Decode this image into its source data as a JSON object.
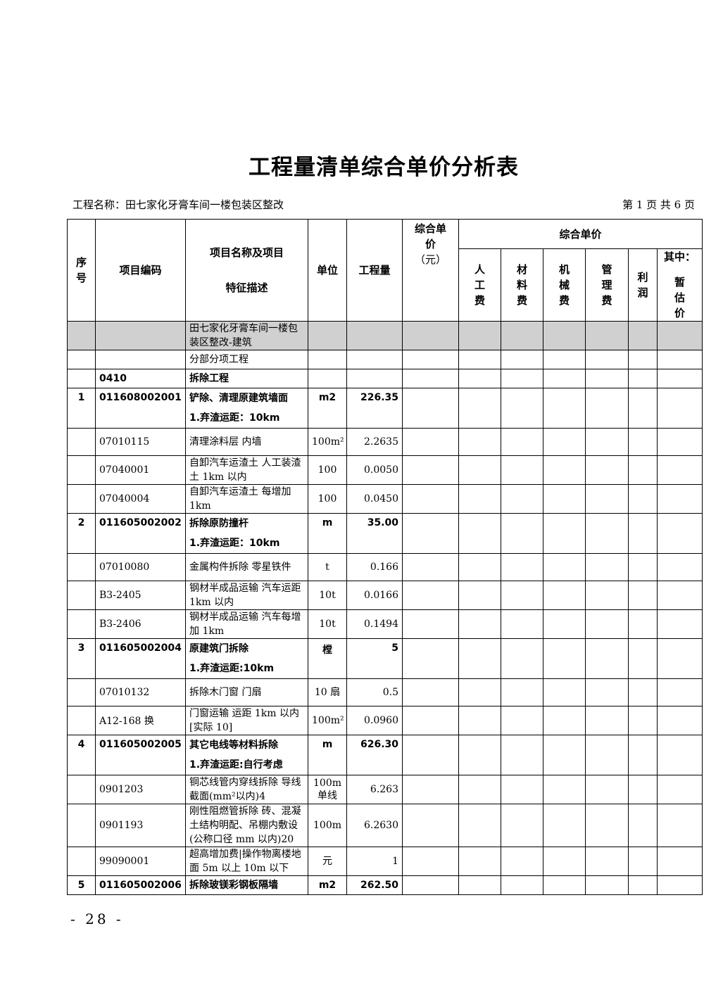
{
  "header": {
    "title": "工程量清单综合单价分析表",
    "project": "工程名称：田七家化牙膏车间一楼包装区整改",
    "page": "第 1 页  共 6 页"
  },
  "table": {
    "columns": {
      "no": "序号",
      "code": "项目编码",
      "name": [
        "项目名称及项目",
        "特征描述"
      ],
      "unit": "单位",
      "qty": "工程量",
      "price": [
        "综合单价",
        "（元）"
      ],
      "group": "综合单价",
      "sub": [
        [
          "人工费"
        ],
        [
          "材料费"
        ],
        [
          "机械费"
        ],
        [
          "管理费"
        ],
        [
          "利润"
        ],
        [
          "其中：",
          "暂估价"
        ]
      ]
    },
    "section": "田七家化牙膏车间一楼包装区整改-建筑",
    "rows": [
      {
        "kind": "group",
        "name": [
          "分部分项工程"
        ]
      },
      {
        "kind": "group-bold",
        "code": "0410",
        "name": [
          "拆除工程"
        ]
      },
      {
        "kind": "item",
        "no": "1",
        "code": "011608002001",
        "name": [
          "铲除、清理原建筑墙面",
          "1.弃渣运距：10km"
        ],
        "unit": "m2",
        "qty": "226.35"
      },
      {
        "kind": "sub",
        "code": "07010115",
        "name": [
          "清理涂料层 内墙"
        ],
        "unit": "100m²",
        "qty": "2.2635"
      },
      {
        "kind": "sub",
        "code": "07040001",
        "name": [
          "自卸汽车运渣土 人工装渣土 1km 以内"
        ],
        "unit": "100",
        "qty": "0.0050"
      },
      {
        "kind": "sub",
        "code": "07040004",
        "name": [
          "自卸汽车运渣土 每增加 1km"
        ],
        "unit": "100",
        "qty": "0.0450"
      },
      {
        "kind": "item",
        "no": "2",
        "code": "011605002002",
        "name": [
          "拆除原防撞杆",
          "1.弃渣运距：10km"
        ],
        "unit": "m",
        "qty": "35.00"
      },
      {
        "kind": "sub",
        "code": "07010080",
        "name": [
          "金属构件拆除 零星铁件"
        ],
        "unit": "t",
        "qty": "0.166"
      },
      {
        "kind": "sub",
        "code": "B3-2405",
        "name": [
          "钢材半成品运输 汽车运距 1km 以内"
        ],
        "unit": "10t",
        "qty": "0.0166"
      },
      {
        "kind": "sub",
        "code": "B3-2406",
        "name": [
          "钢材半成品运输 汽车每增加 1km"
        ],
        "unit": "10t",
        "qty": "0.1494"
      },
      {
        "kind": "item",
        "no": "3",
        "code": "011605002004",
        "name": [
          "原建筑门拆除",
          "1.弃渣运距:10km"
        ],
        "unit": "樘",
        "qty": "5"
      },
      {
        "kind": "sub",
        "code": "07010132",
        "name": [
          "拆除木门窗 门扇"
        ],
        "unit": "10 扇",
        "qty": "0.5"
      },
      {
        "kind": "sub",
        "code": "A12-168 换",
        "name": [
          "门窗运输 运距 1km 以内[实际 10]"
        ],
        "unit": "100m²",
        "qty": "0.0960"
      },
      {
        "kind": "item",
        "no": "4",
        "code": "011605002005",
        "name": [
          "其它电线等材料拆除",
          "1.弃渣运距:自行考虑"
        ],
        "unit": "m",
        "qty": "626.30"
      },
      {
        "kind": "sub",
        "code": "0901203",
        "name": [
          "铜芯线管内穿线拆除 导线截面(mm²以内)4"
        ],
        "unit": "100m 单线",
        "qty": "6.263"
      },
      {
        "kind": "sub",
        "code": "0901193",
        "name": [
          "刚性阻燃管拆除 砖、混凝土结构明配、吊棚内敷设(公称口径 mm 以内)20"
        ],
        "unit": "100m",
        "qty": "6.2630"
      },
      {
        "kind": "sub",
        "code": "99090001",
        "name": [
          "超高增加费|操作物离楼地面 5m 以上 10m 以下"
        ],
        "unit": "元",
        "qty": "1"
      },
      {
        "kind": "item-last",
        "no": "5",
        "code": "011605002006",
        "name": [
          "拆除玻镁彩钢板隔墙"
        ],
        "unit": "m2",
        "qty": "262.50"
      }
    ]
  },
  "footer": "- 28 -"
}
